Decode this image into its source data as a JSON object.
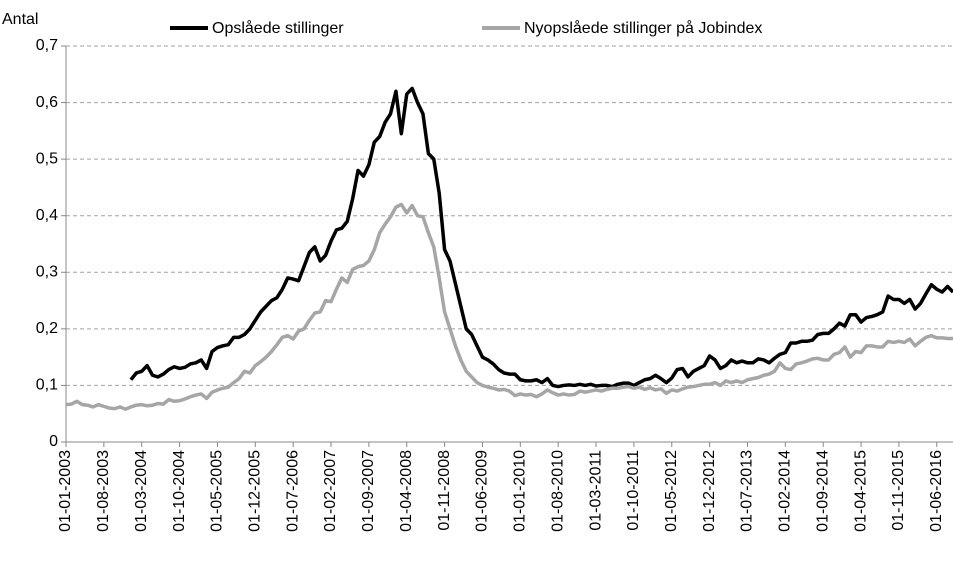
{
  "chart_data": {
    "type": "line",
    "y_label": "Antal",
    "categories": [
      "01-01-2003",
      null,
      null,
      null,
      null,
      null,
      null,
      "01-08-2003",
      null,
      null,
      null,
      null,
      null,
      null,
      "01-03-2004",
      null,
      null,
      null,
      null,
      null,
      null,
      "01-10-2004",
      null,
      null,
      null,
      null,
      null,
      null,
      "01-05-2005",
      null,
      null,
      null,
      null,
      null,
      null,
      "01-12-2005",
      null,
      null,
      null,
      null,
      null,
      null,
      "01-07-2006",
      null,
      null,
      null,
      null,
      null,
      null,
      "01-02-2007",
      null,
      null,
      null,
      null,
      null,
      null,
      "01-09-2007",
      null,
      null,
      null,
      null,
      null,
      null,
      "01-04-2008",
      null,
      null,
      null,
      null,
      null,
      null,
      "01-11-2008",
      null,
      null,
      null,
      null,
      null,
      null,
      "01-06-2009",
      null,
      null,
      null,
      null,
      null,
      null,
      "01-01-2010",
      null,
      null,
      null,
      null,
      null,
      null,
      "01-08-2010",
      null,
      null,
      null,
      null,
      null,
      null,
      "01-03-2011",
      null,
      null,
      null,
      null,
      null,
      null,
      "01-10-2011",
      null,
      null,
      null,
      null,
      null,
      null,
      "01-05-2012",
      null,
      null,
      null,
      null,
      null,
      null,
      "01-12-2012",
      null,
      null,
      null,
      null,
      null,
      null,
      "01-07-2013",
      null,
      null,
      null,
      null,
      null,
      null,
      "01-02-2014",
      null,
      null,
      null,
      null,
      null,
      null,
      "01-09-2014",
      null,
      null,
      null,
      null,
      null,
      null,
      "01-04-2015",
      null,
      null,
      null,
      null,
      null,
      null,
      "01-11-2015",
      null,
      null,
      null,
      null,
      null,
      null,
      "01-06-2016",
      null,
      null,
      null
    ],
    "series": [
      {
        "name": "Opslåede stillinger",
        "color": "#000000",
        "values": [
          null,
          null,
          null,
          null,
          null,
          null,
          null,
          null,
          null,
          null,
          null,
          null,
          0.11,
          0.122,
          0.125,
          0.135,
          0.118,
          0.115,
          0.12,
          0.128,
          0.133,
          0.13,
          0.132,
          0.138,
          0.14,
          0.145,
          0.13,
          0.16,
          0.167,
          0.17,
          0.172,
          0.185,
          0.185,
          0.19,
          0.2,
          0.215,
          0.23,
          0.24,
          0.25,
          0.255,
          0.27,
          0.29,
          0.288,
          0.285,
          0.31,
          0.335,
          0.345,
          0.32,
          0.33,
          0.355,
          0.375,
          0.378,
          0.39,
          0.43,
          0.48,
          0.47,
          0.49,
          0.53,
          0.54,
          0.565,
          0.58,
          0.62,
          0.545,
          0.615,
          0.625,
          0.6,
          0.58,
          0.51,
          0.5,
          0.44,
          0.34,
          0.32,
          0.28,
          0.24,
          0.2,
          0.19,
          0.17,
          0.15,
          0.145,
          0.138,
          0.128,
          0.122,
          0.12,
          0.12,
          0.11,
          0.108,
          0.108,
          0.11,
          0.105,
          0.112,
          0.1,
          0.098,
          0.1,
          0.101,
          0.1,
          0.102,
          0.1,
          0.102,
          0.099,
          0.1,
          0.1,
          0.098,
          0.102,
          0.104,
          0.104,
          0.1,
          0.105,
          0.11,
          0.112,
          0.118,
          0.112,
          0.105,
          0.113,
          0.128,
          0.13,
          0.115,
          0.125,
          0.13,
          0.135,
          0.152,
          0.145,
          0.13,
          0.135,
          0.145,
          0.14,
          0.143,
          0.14,
          0.14,
          0.147,
          0.145,
          0.14,
          0.148,
          0.155,
          0.158,
          0.175,
          0.175,
          0.178,
          0.178,
          0.18,
          0.19,
          0.192,
          0.192,
          0.2,
          0.21,
          0.205,
          0.225,
          0.225,
          0.212,
          0.22,
          0.222,
          0.225,
          0.23,
          0.258,
          0.252,
          0.252,
          0.245,
          0.252,
          0.235,
          0.245,
          0.262,
          0.278,
          0.27,
          0.265,
          0.275,
          0.265
        ]
      },
      {
        "name": "Nyopslåede stillinger på Jobindex",
        "color": "#a6a6a6",
        "values": [
          0.066,
          0.067,
          0.072,
          0.066,
          0.065,
          0.062,
          0.066,
          0.063,
          0.06,
          0.059,
          0.062,
          0.058,
          0.062,
          0.065,
          0.066,
          0.064,
          0.065,
          0.068,
          0.067,
          0.075,
          0.072,
          0.073,
          0.076,
          0.08,
          0.083,
          0.085,
          0.077,
          0.088,
          0.092,
          0.095,
          0.097,
          0.105,
          0.112,
          0.125,
          0.122,
          0.135,
          0.142,
          0.15,
          0.16,
          0.172,
          0.185,
          0.188,
          0.182,
          0.196,
          0.2,
          0.215,
          0.228,
          0.23,
          0.25,
          0.248,
          0.27,
          0.29,
          0.282,
          0.305,
          0.31,
          0.312,
          0.32,
          0.34,
          0.37,
          0.385,
          0.398,
          0.415,
          0.42,
          0.405,
          0.418,
          0.4,
          0.398,
          0.37,
          0.345,
          0.29,
          0.23,
          0.2,
          0.17,
          0.145,
          0.125,
          0.115,
          0.105,
          0.1,
          0.097,
          0.095,
          0.092,
          0.093,
          0.09,
          0.082,
          0.085,
          0.083,
          0.084,
          0.08,
          0.085,
          0.092,
          0.087,
          0.083,
          0.085,
          0.083,
          0.084,
          0.09,
          0.088,
          0.09,
          0.092,
          0.09,
          0.093,
          0.095,
          0.095,
          0.097,
          0.098,
          0.095,
          0.097,
          0.093,
          0.096,
          0.092,
          0.094,
          0.086,
          0.092,
          0.09,
          0.094,
          0.097,
          0.098,
          0.1,
          0.102,
          0.102,
          0.105,
          0.1,
          0.108,
          0.105,
          0.108,
          0.105,
          0.11,
          0.112,
          0.114,
          0.118,
          0.12,
          0.125,
          0.14,
          0.13,
          0.128,
          0.138,
          0.14,
          0.143,
          0.147,
          0.148,
          0.145,
          0.145,
          0.155,
          0.158,
          0.168,
          0.15,
          0.16,
          0.158,
          0.17,
          0.17,
          0.168,
          0.168,
          0.178,
          0.176,
          0.178,
          0.176,
          0.182,
          0.17,
          0.178,
          0.185,
          0.188,
          0.184,
          0.184,
          0.183,
          0.183
        ]
      }
    ],
    "ylim": [
      0,
      0.7
    ],
    "yticks": [
      0,
      {
        "value": 0.1,
        "label": "0,1"
      },
      {
        "value": 0.2,
        "label": "0,2"
      },
      {
        "value": 0.3,
        "label": "0,3"
      },
      {
        "value": 0.4,
        "label": "0,4"
      },
      {
        "value": 0.5,
        "label": "0,5"
      },
      {
        "value": 0.6,
        "label": "0,6"
      },
      {
        "value": 0.7,
        "label": "0,7"
      }
    ],
    "grid": true,
    "legend": "top"
  }
}
